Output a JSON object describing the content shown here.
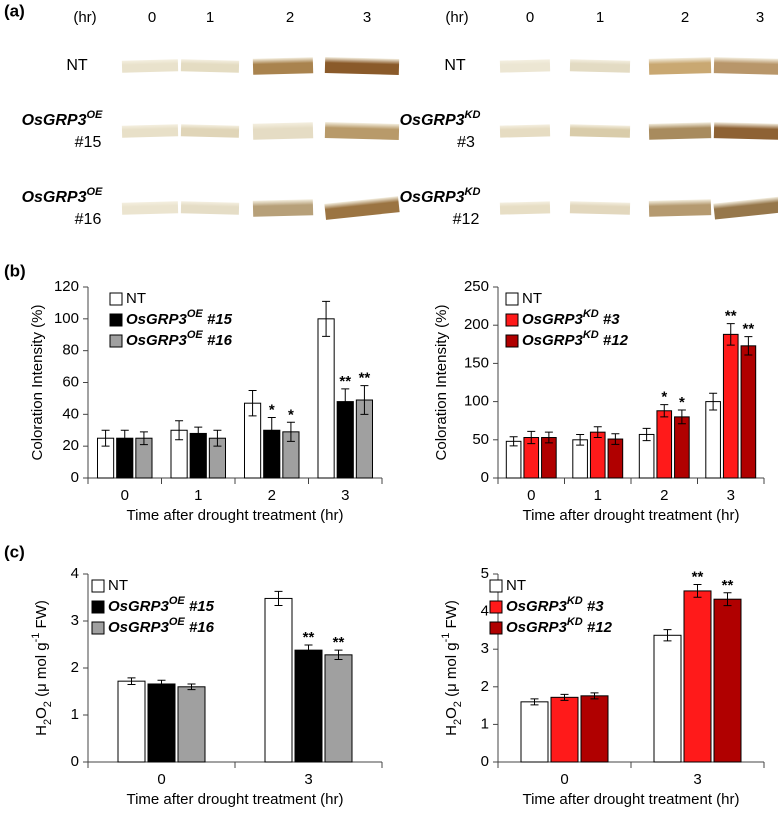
{
  "panel_labels": [
    "(a)",
    "(b)",
    "(c)"
  ],
  "panel_a": [
    {
      "hr": "(hr)",
      "times": [
        0,
        1,
        2,
        3
      ],
      "rows": [
        {
          "name": "NT"
        },
        {
          "name": "OsGRP3",
          "sup": "OE",
          "suffix": "#15"
        },
        {
          "name": "OsGRP3",
          "sup": "OE",
          "suffix": "#16"
        }
      ]
    },
    {
      "hr": "(hr)",
      "times": [
        0,
        1,
        2,
        3
      ],
      "rows": [
        {
          "name": "NT"
        },
        {
          "name": "OsGRP3",
          "sup": "KD",
          "suffix": "#3"
        },
        {
          "name": "OsGRP3",
          "sup": "KD",
          "suffix": "#12"
        }
      ]
    }
  ],
  "chart_data": [
    {
      "type": "bar",
      "categories": [
        "0",
        "1",
        "2",
        "3"
      ],
      "xlabel": "Time after drought treatment (hr)",
      "ylabel": [
        {
          "text": "Coloration Intensity (%)"
        }
      ],
      "ylim": [
        0,
        120
      ],
      "yticks": [
        0,
        20,
        40,
        60,
        80,
        100,
        120
      ],
      "legend": "upper left",
      "series": [
        {
          "name": "NT",
          "color": "#ffffff",
          "values": [
            25,
            30,
            47,
            100
          ],
          "errors": [
            5,
            6,
            8,
            11
          ]
        },
        {
          "name": "OsGRP3",
          "sup": "OE",
          "suffix": "#15",
          "italic": true,
          "color": "#000000",
          "values": [
            25,
            28,
            30,
            48
          ],
          "errors": [
            5,
            4,
            8,
            8
          ],
          "significance": [
            null,
            null,
            "*",
            "**"
          ]
        },
        {
          "name": "OsGRP3",
          "sup": "OE",
          "suffix": "#16",
          "italic": true,
          "color": "#a0a0a0",
          "values": [
            25,
            25,
            29,
            49
          ],
          "errors": [
            4,
            5,
            6,
            9
          ],
          "significance": [
            null,
            null,
            "*",
            "**"
          ]
        }
      ]
    },
    {
      "type": "bar",
      "categories": [
        "0",
        "1",
        "2",
        "3"
      ],
      "xlabel": "Time after drought treatment (hr)",
      "ylabel": [
        {
          "text": "Coloration Intensity (%)"
        }
      ],
      "ylim": [
        0,
        250
      ],
      "yticks": [
        0,
        50,
        100,
        150,
        200,
        250
      ],
      "legend": "upper left",
      "series": [
        {
          "name": "NT",
          "color": "#ffffff",
          "values": [
            48,
            50,
            57,
            100
          ],
          "errors": [
            6,
            7,
            8,
            11
          ]
        },
        {
          "name": "OsGRP3",
          "sup": "KD",
          "suffix": "#3",
          "italic": true,
          "color": "#ff1a1a",
          "values": [
            53,
            60,
            88,
            188
          ],
          "errors": [
            8,
            7,
            8,
            14
          ],
          "significance": [
            null,
            null,
            "*",
            "**"
          ]
        },
        {
          "name": "OsGRP3",
          "sup": "KD",
          "suffix": "#12",
          "italic": true,
          "color": "#b00000",
          "values": [
            53,
            51,
            80,
            173
          ],
          "errors": [
            7,
            7,
            9,
            12
          ],
          "significance": [
            null,
            null,
            "*",
            "**"
          ]
        }
      ]
    },
    {
      "type": "bar",
      "categories": [
        "0",
        "3"
      ],
      "xlabel": "Time after drought treatment (hr)",
      "ylabel": [
        {
          "text": "H"
        },
        {
          "text": "2",
          "shift": "sub"
        },
        {
          "text": "O"
        },
        {
          "text": "2",
          "shift": "sub"
        },
        {
          "text": " (μ mol g"
        },
        {
          "text": "-1",
          "shift": "super"
        },
        {
          "text": " FW)"
        }
      ],
      "ylim": [
        0,
        4
      ],
      "yticks": [
        0,
        1,
        2,
        3,
        4
      ],
      "legend": "upper left",
      "series": [
        {
          "name": "NT",
          "color": "#ffffff",
          "values": [
            1.72,
            3.48
          ],
          "errors": [
            0.07,
            0.15
          ]
        },
        {
          "name": "OsGRP3",
          "sup": "OE",
          "suffix": "#15",
          "italic": true,
          "color": "#000000",
          "values": [
            1.66,
            2.38
          ],
          "errors": [
            0.08,
            0.11
          ],
          "significance": [
            null,
            "**"
          ]
        },
        {
          "name": "OsGRP3",
          "sup": "OE",
          "suffix": "#16",
          "italic": true,
          "color": "#a0a0a0",
          "values": [
            1.6,
            2.28
          ],
          "errors": [
            0.06,
            0.1
          ],
          "significance": [
            null,
            "**"
          ]
        }
      ]
    },
    {
      "type": "bar",
      "categories": [
        "0",
        "3"
      ],
      "xlabel": "Time after drought treatment (hr)",
      "ylabel": [
        {
          "text": "H"
        },
        {
          "text": "2",
          "shift": "sub"
        },
        {
          "text": "O"
        },
        {
          "text": "2",
          "shift": "sub"
        },
        {
          "text": " (μ mol g"
        },
        {
          "text": "-1",
          "shift": "super"
        },
        {
          "text": " FW)"
        }
      ],
      "ylim": [
        0,
        5
      ],
      "yticks": [
        0,
        1,
        2,
        3,
        4,
        5
      ],
      "legend": "upper left",
      "series": [
        {
          "name": "NT",
          "color": "#ffffff",
          "values": [
            1.6,
            3.37
          ],
          "errors": [
            0.08,
            0.15
          ]
        },
        {
          "name": "OsGRP3",
          "sup": "KD",
          "suffix": "#3",
          "italic": true,
          "color": "#ff1a1a",
          "values": [
            1.72,
            4.55
          ],
          "errors": [
            0.08,
            0.17
          ],
          "significance": [
            null,
            "**"
          ]
        },
        {
          "name": "OsGRP3",
          "sup": "KD",
          "suffix": "#12",
          "italic": true,
          "color": "#b00000",
          "values": [
            1.76,
            4.33
          ],
          "errors": [
            0.08,
            0.17
          ],
          "significance": [
            null,
            "**"
          ]
        }
      ]
    }
  ]
}
